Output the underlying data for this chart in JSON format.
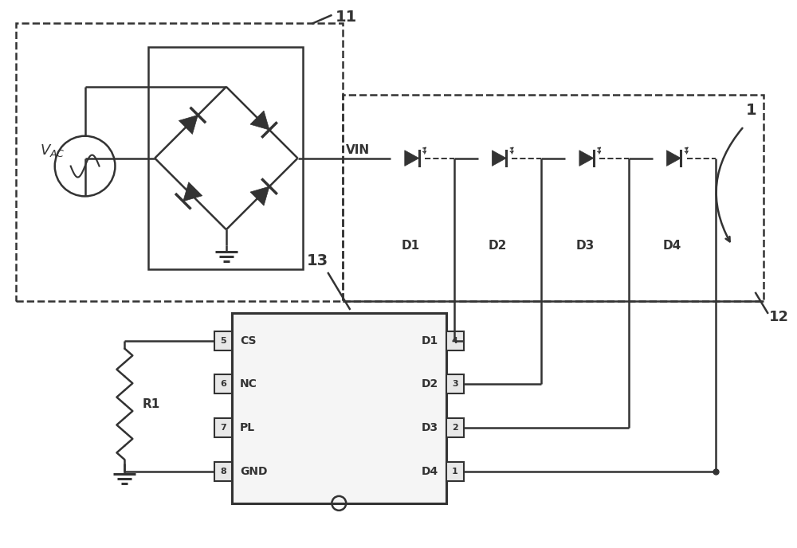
{
  "bg_color": "#ffffff",
  "lc": "#555555",
  "dc": "#333333",
  "fig_width": 10.0,
  "fig_height": 6.88,
  "label_11": "11",
  "label_1": "1",
  "label_12": "12",
  "label_13": "13",
  "label_VIN": "VIN",
  "label_R1": "R1",
  "led_labels": [
    "D1",
    "D2",
    "D3",
    "D4"
  ],
  "pin_left_labels": [
    "CS",
    "NC",
    "PL",
    "GND"
  ],
  "pin_left_nums": [
    "5",
    "6",
    "7",
    "8"
  ],
  "pin_right_labels": [
    "D1",
    "D2",
    "D3",
    "D4"
  ],
  "pin_right_nums": [
    "4",
    "3",
    "2",
    "1"
  ]
}
